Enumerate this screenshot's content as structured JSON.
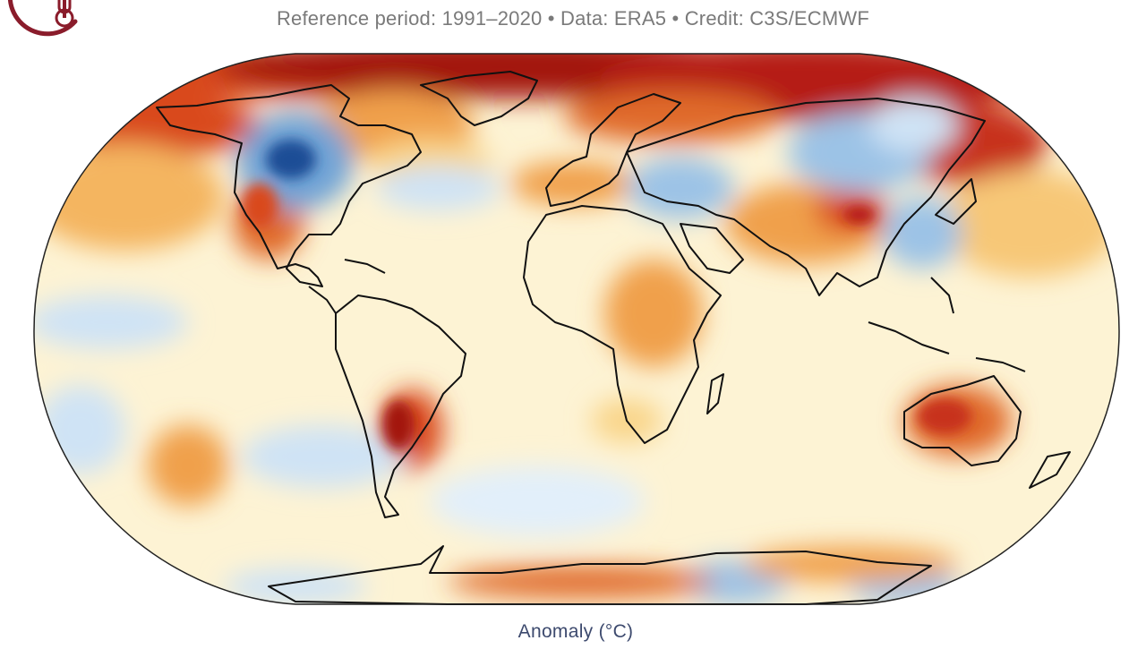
{
  "header": {
    "subtitle": "Reference period: 1991–2020 • Data: ERA5 • Credit: C3S/ECMWF"
  },
  "logo": {
    "icon": "thermometer-logo-icon"
  },
  "map": {
    "projection": "Robinson",
    "variable": "Surface air temperature anomaly",
    "colors": {
      "deep_cold": "#1f4e96",
      "cold": "#6fa3d6",
      "cool": "#cfe3f5",
      "neutral": "#fdf6dc",
      "mild": "#f9d58a",
      "warm": "#f0a04b",
      "hot": "#d9491e",
      "very_hot": "#a3180f",
      "coastline": "#111111"
    }
  },
  "legend": {
    "title": "Anomaly (°C)"
  }
}
